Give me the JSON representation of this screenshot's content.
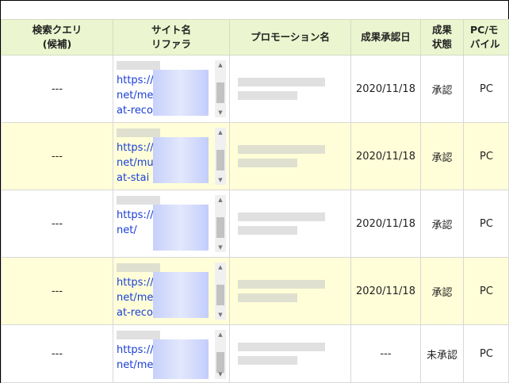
{
  "headers": {
    "query": "検索クエリ",
    "query2": "(候補)",
    "site": "サイト名",
    "site2": "リファラ",
    "promo": "プロモーション名",
    "date": "成果承認日",
    "status": "成果",
    "status2": "状態",
    "device": "PC/モ",
    "device2": "バイル"
  },
  "rows": [
    {
      "query": "---",
      "url1": "https://",
      "url2": "net/me",
      "url3": "at-recor",
      "date": "2020/11/18",
      "status": "承認",
      "device": "PC"
    },
    {
      "query": "---",
      "url1": "https://",
      "url2": "net/mu",
      "url3": "at-stai",
      "date": "2020/11/18",
      "status": "承認",
      "device": "PC"
    },
    {
      "query": "---",
      "url1": "https://",
      "url2": "net/",
      "url3": "",
      "date": "2020/11/18",
      "status": "承認",
      "device": "PC"
    },
    {
      "query": "---",
      "url1": "https://",
      "url2": "net/mer",
      "url3": "at-recor",
      "date": "2020/11/18",
      "status": "承認",
      "device": "PC"
    },
    {
      "query": "---",
      "url1": "https://",
      "url2": "net/mer",
      "url3": "",
      "date": "---",
      "status": "未承認",
      "device": "PC"
    }
  ],
  "colors": {
    "header_bg": "#ebf5cf",
    "alt_row_bg": "#fffed8",
    "link": "#1a3fd6"
  }
}
